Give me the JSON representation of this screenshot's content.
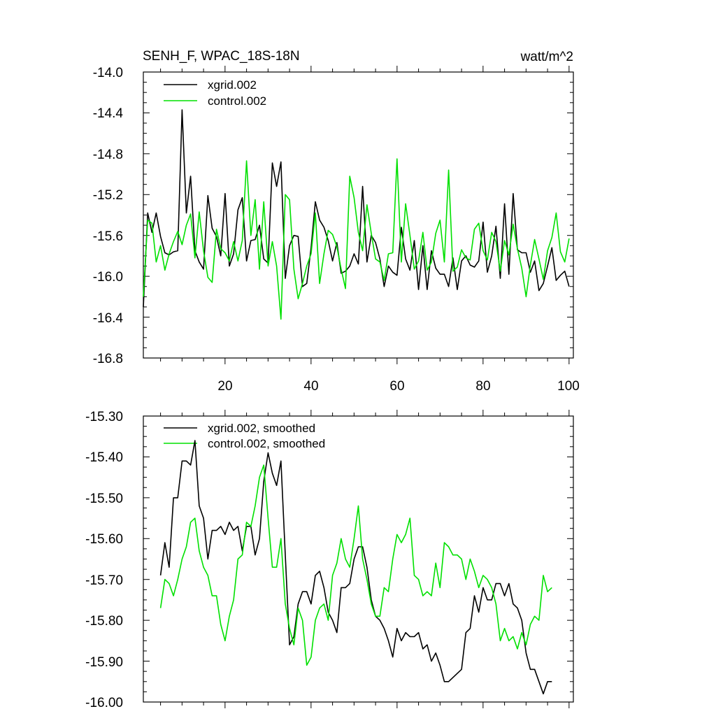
{
  "colors": {
    "xgrid": "#000000",
    "control": "#00e000"
  },
  "chart_data": [
    {
      "type": "line",
      "title": "SENH_F, WPAC_18S-18N",
      "units": "watt/m^2",
      "xlabel": "",
      "ylabel": "",
      "xlim": [
        1,
        101
      ],
      "ylim": [
        -16.8,
        -14.0
      ],
      "yticks": [
        "-14.0",
        "-14.4",
        "-14.8",
        "-15.2",
        "-15.6",
        "-16.0",
        "-16.4",
        "-16.8"
      ],
      "xticks": [
        "20",
        "40",
        "60",
        "80",
        "100"
      ],
      "xtick_values": [
        20,
        40,
        60,
        80,
        100
      ],
      "grid": false,
      "legend": "top-left",
      "x_start": 1,
      "series": [
        {
          "name": "xgrid.002",
          "color": "#000000",
          "values": [
            -16.3,
            -15.38,
            -15.57,
            -15.38,
            -15.61,
            -15.77,
            -15.79,
            -15.76,
            -15.75,
            -14.37,
            -15.38,
            -15.02,
            -15.75,
            -15.86,
            -15.93,
            -15.21,
            -15.53,
            -15.61,
            -15.8,
            -15.19,
            -15.9,
            -15.78,
            -15.35,
            -15.23,
            -15.85,
            -15.65,
            -15.64,
            -15.5,
            -15.83,
            -15.87,
            -14.89,
            -15.12,
            -14.88,
            -16.02,
            -15.7,
            -15.6,
            -15.61,
            -16.1,
            -16.07,
            -15.72,
            -15.27,
            -15.45,
            -15.52,
            -15.65,
            -15.85,
            -15.67,
            -15.97,
            -15.95,
            -15.9,
            -15.78,
            -15.88,
            -15.12,
            -15.86,
            -15.6,
            -15.67,
            -15.83,
            -16.1,
            -15.9,
            -15.96,
            -15.99,
            -15.52,
            -15.83,
            -15.94,
            -15.65,
            -16.13,
            -15.7,
            -16.13,
            -15.75,
            -15.92,
            -15.98,
            -15.98,
            -16.1,
            -15.82,
            -16.13,
            -15.85,
            -15.8,
            -15.89,
            -15.91,
            -15.85,
            -15.47,
            -15.96,
            -15.8,
            -15.51,
            -16.02,
            -15.29,
            -15.98,
            -15.19,
            -15.74,
            -15.77,
            -15.77,
            -15.96,
            -15.85,
            -16.14,
            -16.07,
            -15.9,
            -15.72,
            -16.04,
            -15.99,
            -15.95,
            -16.1
          ]
        },
        {
          "name": "control.002",
          "color": "#00e000",
          "values": [
            -16.2,
            -15.45,
            -15.48,
            -15.86,
            -15.7,
            -15.94,
            -15.78,
            -15.66,
            -15.56,
            -15.69,
            -15.5,
            -15.39,
            -15.82,
            -15.37,
            -15.75,
            -16.01,
            -16.06,
            -15.54,
            -15.73,
            -15.77,
            -15.85,
            -15.66,
            -15.85,
            -15.65,
            -14.87,
            -15.6,
            -15.25,
            -15.93,
            -15.27,
            -15.9,
            -15.66,
            -15.9,
            -16.42,
            -15.2,
            -15.25,
            -15.93,
            -16.22,
            -16.07,
            -15.9,
            -15.78,
            -15.38,
            -16.07,
            -15.78,
            -15.55,
            -15.59,
            -15.71,
            -15.93,
            -16.12,
            -15.02,
            -15.23,
            -15.57,
            -15.75,
            -15.3,
            -15.58,
            -15.83,
            -15.86,
            -16.04,
            -15.78,
            -15.77,
            -14.85,
            -15.86,
            -15.29,
            -15.6,
            -15.93,
            -15.85,
            -15.57,
            -15.94,
            -15.86,
            -15.58,
            -15.45,
            -15.86,
            -14.96,
            -15.95,
            -15.91,
            -15.74,
            -15.82,
            -15.84,
            -15.54,
            -15.48,
            -15.75,
            -15.84,
            -15.57,
            -15.66,
            -15.95,
            -15.65,
            -15.79,
            -15.49,
            -15.73,
            -15.92,
            -16.2,
            -15.89,
            -15.64,
            -15.83,
            -16.03,
            -15.75,
            -15.62,
            -15.38,
            -15.76,
            -15.86,
            -15.63
          ]
        }
      ]
    },
    {
      "type": "line",
      "xlabel": "",
      "ylabel": "",
      "xlim": [
        1,
        101
      ],
      "ylim": [
        -16.0,
        -15.3
      ],
      "yticks": [
        "-15.30",
        "-15.40",
        "-15.50",
        "-15.60",
        "-15.70",
        "-15.80",
        "-15.90",
        "-16.00"
      ],
      "xtick_values": [
        20,
        40,
        60,
        80,
        100
      ],
      "grid": false,
      "legend": "top-left",
      "x_start": 5,
      "series": [
        {
          "name": "xgrid.002, smoothed",
          "color": "#000000",
          "values": [
            -15.69,
            -15.61,
            -15.67,
            -15.5,
            -15.5,
            -15.41,
            -15.41,
            -15.42,
            -15.36,
            -15.52,
            -15.55,
            -15.65,
            -15.58,
            -15.58,
            -15.57,
            -15.59,
            -15.56,
            -15.58,
            -15.57,
            -15.63,
            -15.57,
            -15.57,
            -15.64,
            -15.6,
            -15.46,
            -15.39,
            -15.44,
            -15.47,
            -15.41,
            -15.64,
            -15.86,
            -15.84,
            -15.76,
            -15.73,
            -15.73,
            -15.76,
            -15.69,
            -15.68,
            -15.72,
            -15.78,
            -15.8,
            -15.83,
            -15.72,
            -15.72,
            -15.71,
            -15.65,
            -15.62,
            -15.62,
            -15.67,
            -15.75,
            -15.79,
            -15.8,
            -15.82,
            -15.85,
            -15.89,
            -15.82,
            -15.85,
            -15.83,
            -15.84,
            -15.84,
            -15.83,
            -15.87,
            -15.86,
            -15.9,
            -15.88,
            -15.91,
            -15.95,
            -15.95,
            -15.94,
            -15.93,
            -15.92,
            -15.83,
            -15.82,
            -15.74,
            -15.78,
            -15.72,
            -15.75,
            -15.75,
            -15.71,
            -15.71,
            -15.74,
            -15.71,
            -15.76,
            -15.77,
            -15.8,
            -15.88,
            -15.92,
            -15.92,
            -15.95,
            -15.98,
            -15.95,
            -15.95
          ]
        },
        {
          "name": "control.002, smoothed",
          "color": "#00e000",
          "values": [
            -15.77,
            -15.7,
            -15.71,
            -15.74,
            -15.7,
            -15.65,
            -15.62,
            -15.56,
            -15.55,
            -15.63,
            -15.67,
            -15.69,
            -15.74,
            -15.74,
            -15.81,
            -15.85,
            -15.79,
            -15.75,
            -15.65,
            -15.64,
            -15.56,
            -15.57,
            -15.52,
            -15.45,
            -15.42,
            -15.55,
            -15.67,
            -15.67,
            -15.6,
            -15.76,
            -15.82,
            -15.86,
            -15.77,
            -15.8,
            -15.91,
            -15.89,
            -15.8,
            -15.77,
            -15.76,
            -15.8,
            -15.69,
            -15.66,
            -15.6,
            -15.65,
            -15.67,
            -15.6,
            -15.52,
            -15.65,
            -15.7,
            -15.76,
            -15.79,
            -15.79,
            -15.72,
            -15.73,
            -15.65,
            -15.59,
            -15.61,
            -15.59,
            -15.55,
            -15.69,
            -15.7,
            -15.74,
            -15.73,
            -15.74,
            -15.66,
            -15.72,
            -15.61,
            -15.62,
            -15.64,
            -15.64,
            -15.65,
            -15.7,
            -15.65,
            -15.68,
            -15.72,
            -15.69,
            -15.7,
            -15.72,
            -15.76,
            -15.85,
            -15.82,
            -15.85,
            -15.84,
            -15.87,
            -15.83,
            -15.86,
            -15.81,
            -15.79,
            -15.8,
            -15.69,
            -15.73,
            -15.72
          ]
        }
      ]
    }
  ]
}
